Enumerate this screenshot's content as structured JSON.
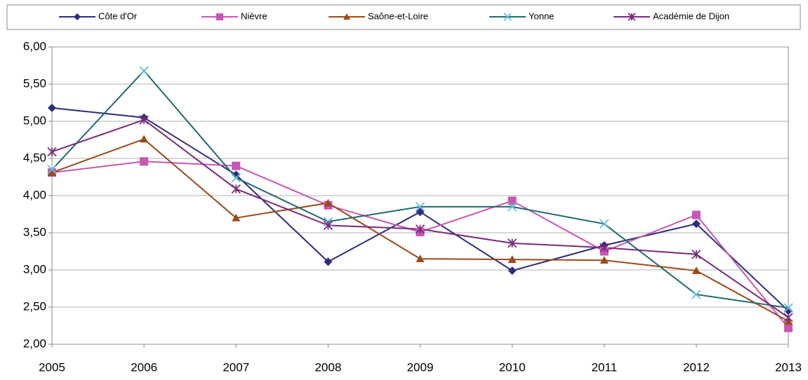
{
  "chart_data": {
    "type": "line",
    "categories": [
      "2005",
      "2006",
      "2007",
      "2008",
      "2009",
      "2010",
      "2011",
      "2012",
      "2013"
    ],
    "series": [
      {
        "name": "Côte d'Or",
        "color": "#2b2d7c",
        "marker": "diamond",
        "values": [
          5.18,
          5.05,
          4.28,
          3.11,
          3.78,
          2.99,
          3.33,
          3.62,
          2.45
        ]
      },
      {
        "name": "Nièvre",
        "color": "#c856b4",
        "marker": "square",
        "values": [
          4.31,
          4.46,
          4.4,
          3.87,
          3.51,
          3.93,
          3.25,
          3.74,
          2.22
        ]
      },
      {
        "name": "Saône-et-Loire",
        "color": "#9c4a1a",
        "marker": "triangle",
        "values": [
          4.31,
          4.76,
          3.7,
          3.9,
          3.15,
          3.14,
          3.13,
          2.99,
          2.31
        ]
      },
      {
        "name": "Yonne",
        "color": "#1e6b6b",
        "marker_color": "#5bc0d8",
        "marker": "x",
        "values": [
          4.35,
          5.68,
          4.24,
          3.65,
          3.85,
          3.85,
          3.62,
          2.67,
          2.49
        ]
      },
      {
        "name": "Académie de Dijon",
        "color": "#7a2a7a",
        "marker": "star",
        "values": [
          4.59,
          5.02,
          4.09,
          3.6,
          3.55,
          3.36,
          3.3,
          3.21,
          2.36
        ]
      }
    ],
    "ylim": [
      2,
      6
    ],
    "yticks": [
      {
        "value": 2,
        "label": "2,00"
      },
      {
        "value": 2.5,
        "label": "2,50"
      },
      {
        "value": 3,
        "label": "3,00"
      },
      {
        "value": 3.5,
        "label": "3,50"
      },
      {
        "value": 4,
        "label": "4,00"
      },
      {
        "value": 4.5,
        "label": "4,50"
      },
      {
        "value": 5,
        "label": "5,00"
      },
      {
        "value": 5.5,
        "label": "5,50"
      },
      {
        "value": 6,
        "label": "6,00"
      }
    ],
    "grid": true,
    "legend": "top"
  }
}
